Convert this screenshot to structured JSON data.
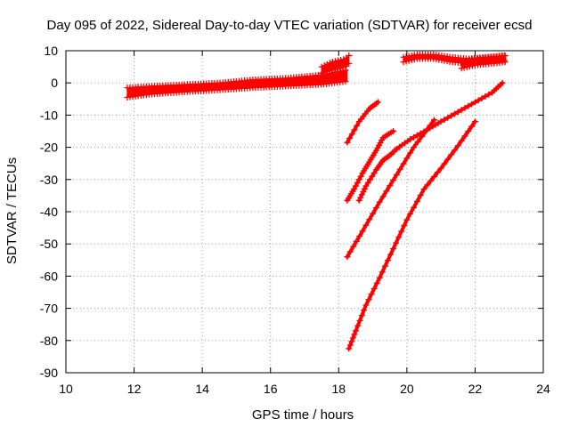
{
  "chart_data": {
    "type": "scatter",
    "title": "Day 095 of 2022, Sidereal Day-to-day VTEC variation (SDTVAR) for receiver ecsd",
    "xlabel": "GPS time / hours",
    "ylabel": "SDTVAR / TECUs",
    "xlim": [
      10,
      24
    ],
    "ylim": [
      -90,
      10
    ],
    "x_ticks": [
      10,
      12,
      14,
      16,
      18,
      20,
      22,
      24
    ],
    "y_ticks": [
      10,
      0,
      -10,
      -20,
      -30,
      -40,
      -50,
      -60,
      -70,
      -80,
      -90
    ],
    "grid": true,
    "marker": "+",
    "color": "#ff0000",
    "bands": [
      {
        "x": [
          11.8,
          12.5,
          13.5,
          14.5,
          15.5,
          16.5,
          17.5,
          18.25
        ],
        "y_low": [
          -4.5,
          -3.5,
          -2.8,
          -2.2,
          -1.5,
          -1.0,
          -0.5,
          0.5
        ],
        "y_high": [
          -1.5,
          -1.0,
          -0.5,
          0.0,
          1.0,
          1.5,
          2.5,
          4.0
        ]
      },
      {
        "x": [
          17.5,
          17.8,
          18.0,
          18.2,
          18.3
        ],
        "y_low": [
          3.0,
          4.0,
          4.5,
          5.0,
          6.0
        ],
        "y_high": [
          5.0,
          6.5,
          7.0,
          7.5,
          8.5
        ]
      },
      {
        "x": [
          19.9,
          20.3,
          20.8,
          21.3,
          21.8,
          22.3,
          22.9
        ],
        "y_low": [
          6.5,
          7.5,
          7.5,
          6.5,
          6.0,
          6.5,
          7.0
        ],
        "y_high": [
          8.0,
          8.8,
          8.8,
          8.0,
          7.5,
          8.0,
          8.5
        ]
      },
      {
        "x": [
          21.6,
          22.0,
          22.5,
          22.9
        ],
        "y_low": [
          4.5,
          5.5,
          6.0,
          6.5
        ],
        "y_high": [
          6.5,
          7.5,
          8.0,
          8.5
        ]
      }
    ],
    "series": [
      {
        "x": [
          18.25,
          18.6,
          18.9,
          19.15
        ],
        "y": [
          -18.5,
          -12.0,
          -8.0,
          -6.0
        ]
      },
      {
        "x": [
          18.25,
          18.45,
          18.7,
          18.9,
          19.1,
          19.3,
          19.6
        ],
        "y": [
          -36.5,
          -33.0,
          -28.0,
          -24.5,
          -21.0,
          -17.0,
          -15.0
        ]
      },
      {
        "x": [
          18.6,
          18.8,
          19.1,
          19.3,
          19.5,
          19.7,
          20.1,
          20.6,
          21.0,
          21.5,
          22.0,
          22.5,
          22.8
        ],
        "y": [
          -36.5,
          -32.0,
          -27.0,
          -24.0,
          -22.5,
          -20.5,
          -17.5,
          -14.5,
          -12.0,
          -9.0,
          -6.0,
          -3.0,
          0.0
        ]
      },
      {
        "x": [
          18.25,
          18.7,
          19.2,
          19.7,
          20.2,
          20.8
        ],
        "y": [
          -54.0,
          -46.0,
          -37.0,
          -28.5,
          -20.0,
          -11.5
        ]
      },
      {
        "x": [
          18.3,
          18.5,
          18.8,
          19.2,
          19.6,
          20.0,
          20.5,
          21.0,
          21.5,
          22.0
        ],
        "y": [
          -82.5,
          -77.0,
          -69.0,
          -60.5,
          -51.5,
          -42.5,
          -33.0,
          -26.5,
          -19.5,
          -12.0
        ]
      }
    ]
  }
}
